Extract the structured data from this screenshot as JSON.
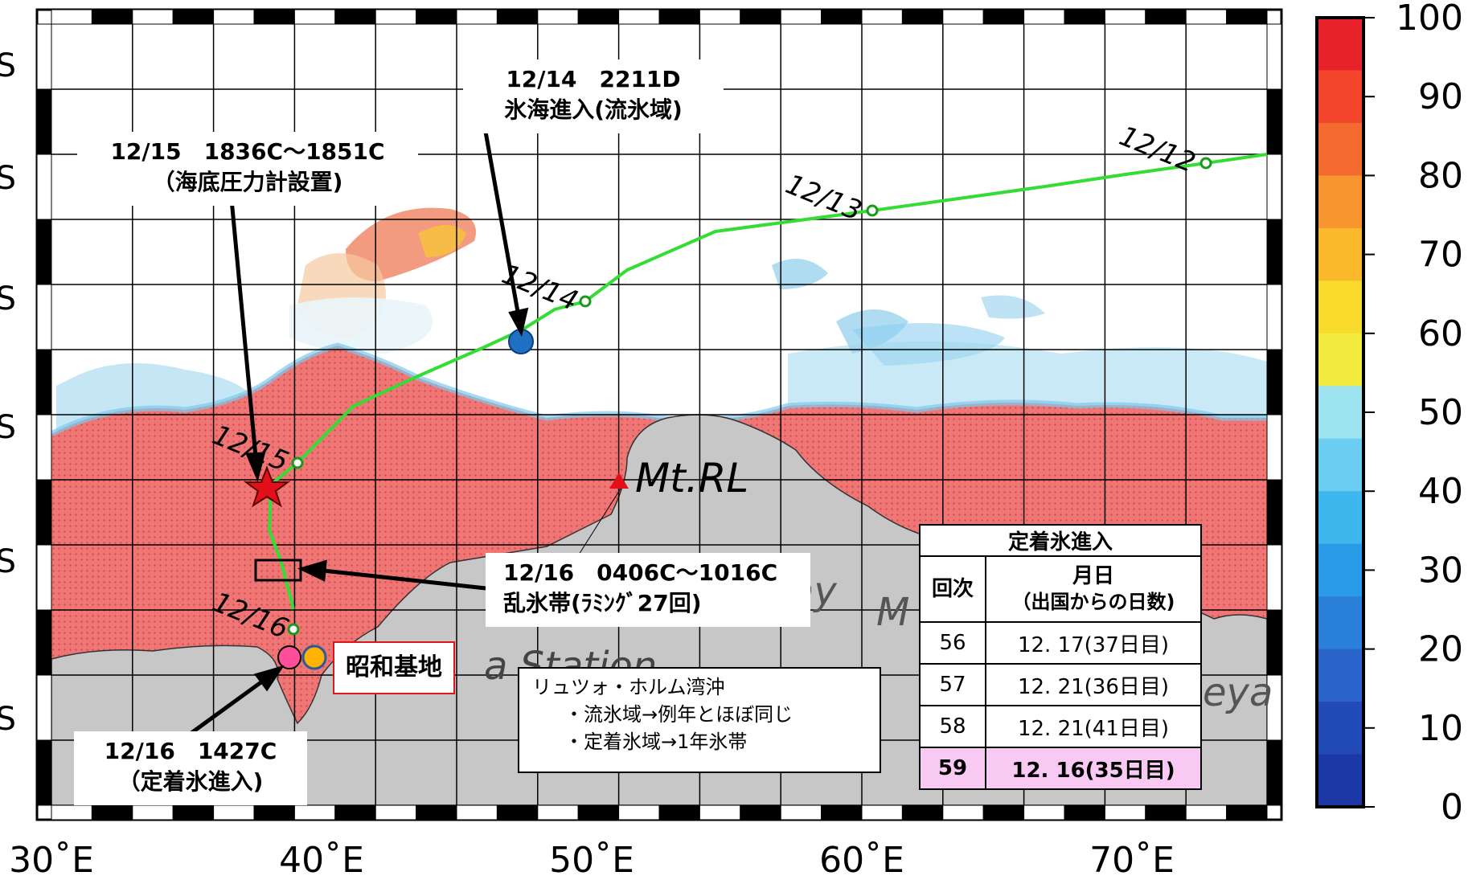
{
  "colors": {
    "track": "#33dd33",
    "ice_high": "#f06a6a",
    "land": "#c6c6c6",
    "station_box_border": "#e0141b",
    "marker_blue": "#1f6fc2",
    "marker_pink": "#ff4f9a",
    "marker_orange": "#ffb200",
    "marker_star": "#e3101a",
    "mtrl_triangle": "#e3101a",
    "highlight_row": "#f7c9f3"
  },
  "map": {
    "lon_range": [
      30,
      75
    ],
    "lon_ticks": [
      "30˚E",
      "40˚E",
      "50˚E",
      "60˚E",
      "70˚E"
    ],
    "lat_ticks": [
      "S",
      "S",
      "S",
      "S",
      "S",
      "S"
    ],
    "place_names": [
      {
        "text": "Mt.RL",
        "name": "mt-rl-label"
      },
      {
        "text": "Bay",
        "name": "bay-label"
      },
      {
        "text": "a Station",
        "name": "station-label-partial"
      },
      {
        "text": "M",
        "name": "map-fragment-m"
      },
      {
        "text": "eya",
        "name": "map-fragment-eya"
      }
    ],
    "track_dates": [
      "12/12",
      "12/13",
      "12/14",
      "12/15",
      "12/16"
    ]
  },
  "colorbar": {
    "ticks": [
      "100",
      "90",
      "80",
      "70",
      "60",
      "50",
      "40",
      "30",
      "20",
      "10",
      "0"
    ],
    "colors": [
      "#e8222a",
      "#f2452c",
      "#f56a2e",
      "#f7962f",
      "#f9b92b",
      "#f7da2b",
      "#f4eb3f",
      "#9ee3f0",
      "#6ccdf2",
      "#3eb7ef",
      "#2a9be6",
      "#2a7fd8",
      "#2a63c9",
      "#234bb8",
      "#1c37a6"
    ]
  },
  "annotations": {
    "ice_sea_entry": [
      "12/14　2211D",
      "氷海進入(流氷域)"
    ],
    "pressure_gauge": [
      "12/15　1836C～1851C",
      "（海底圧力計設置)"
    ],
    "hummock_zone": [
      "12/16　0406C～1016C",
      "乱氷帯(ﾗﾐﾝｸﾞ27回)"
    ],
    "fast_ice_entry": [
      "12/16　1427C",
      "（定着氷進入)"
    ],
    "station": "昭和基地",
    "note": [
      "リュツォ・ホルム湾沖",
      "・流氷域→例年とほぼ同じ",
      "・定着氷域→1年氷帯"
    ]
  },
  "fast_ice_table": {
    "title": "定着氷進入",
    "col_headers": [
      "回次",
      "月日",
      "（出国からの日数)"
    ],
    "rows": [
      {
        "voyage": "56",
        "date": "12. 17(37日目)"
      },
      {
        "voyage": "57",
        "date": "12. 21(36日目)"
      },
      {
        "voyage": "58",
        "date": "12. 21(41日目)"
      },
      {
        "voyage": "59",
        "date": "12. 16(35日目)"
      }
    ]
  }
}
